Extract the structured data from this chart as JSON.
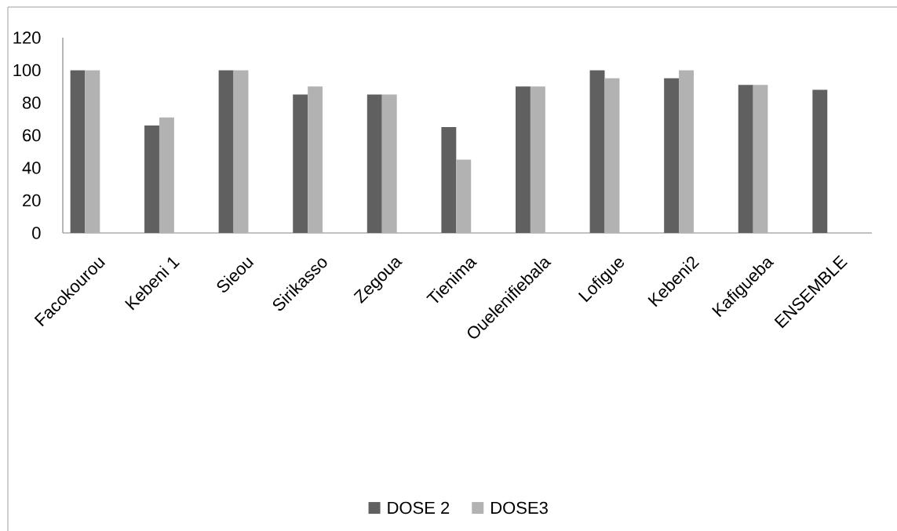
{
  "chart_data": {
    "type": "bar",
    "categories": [
      "Facokourou",
      "Kebeni 1",
      "Sieou",
      "Sirikasso",
      "Zegoua",
      "Tienima",
      "Ouelenifiebala",
      "Lofigue",
      "Kebeni2",
      "Kafigueba",
      "ENSEMBLE"
    ],
    "series": [
      {
        "name": "DOSE 2",
        "color": "#606060",
        "values": [
          100,
          66,
          100,
          85,
          85,
          65,
          90,
          100,
          95,
          91,
          88
        ]
      },
      {
        "name": "DOSE3",
        "color": "#b2b2b2",
        "values": [
          100,
          71,
          100,
          90,
          85,
          45,
          90,
          95,
          100,
          91,
          null
        ]
      }
    ],
    "ylim": [
      0,
      120
    ],
    "yticks": [
      0,
      20,
      40,
      60,
      80,
      100,
      120
    ],
    "legend": "bottom"
  }
}
